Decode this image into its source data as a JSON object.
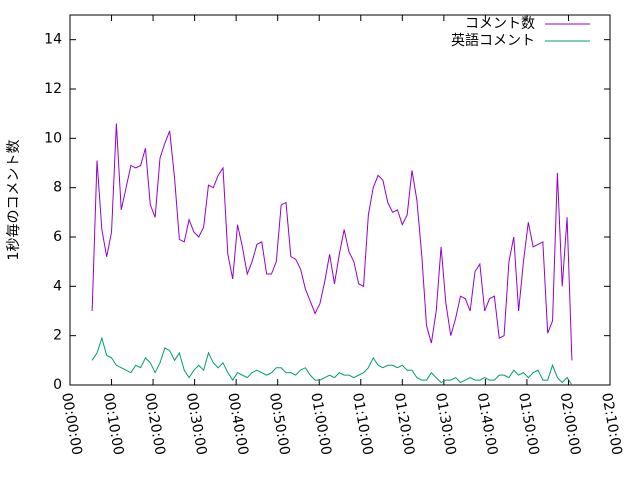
{
  "chart_data": {
    "type": "line",
    "ylabel": "1秒毎のコメント数",
    "x": [
      320,
      390,
      460,
      530,
      600,
      670,
      740,
      810,
      880,
      950,
      1020,
      1090,
      1160,
      1230,
      1300,
      1370,
      1440,
      1510,
      1580,
      1650,
      1720,
      1790,
      1860,
      1930,
      2000,
      2070,
      2140,
      2210,
      2280,
      2350,
      2420,
      2490,
      2560,
      2630,
      2700,
      2770,
      2840,
      2910,
      2980,
      3050,
      3120,
      3190,
      3260,
      3330,
      3400,
      3470,
      3540,
      3610,
      3680,
      3750,
      3820,
      3890,
      3960,
      4030,
      4100,
      4170,
      4240,
      4310,
      4380,
      4450,
      4520,
      4590,
      4660,
      4730,
      4800,
      4870,
      4940,
      5010,
      5080,
      5150,
      5220,
      5290,
      5360,
      5430,
      5500,
      5570,
      5640,
      5710,
      5780,
      5850,
      5920,
      5990,
      6060,
      6130,
      6200,
      6270,
      6340,
      6410,
      6480,
      6550,
      6620,
      6690,
      6760,
      6830,
      6900,
      6970,
      7040,
      7110,
      7180,
      7250
    ],
    "series": [
      {
        "name": "コメント数",
        "color": "#9400d3",
        "values": [
          3.0,
          9.1,
          6.3,
          5.2,
          6.2,
          10.6,
          7.1,
          8.0,
          8.9,
          8.8,
          8.9,
          9.6,
          7.3,
          6.8,
          9.2,
          9.8,
          10.3,
          8.4,
          5.9,
          5.8,
          6.7,
          6.2,
          6.0,
          6.4,
          8.1,
          8.0,
          8.5,
          8.8,
          5.3,
          4.3,
          6.5,
          5.6,
          4.5,
          5.0,
          5.7,
          5.8,
          4.5,
          4.5,
          5.0,
          7.3,
          7.4,
          5.2,
          5.1,
          4.7,
          3.9,
          3.4,
          2.9,
          3.3,
          4.2,
          5.3,
          4.1,
          5.3,
          6.3,
          5.4,
          5.0,
          4.1,
          4.0,
          6.9,
          8.0,
          8.5,
          8.3,
          7.4,
          7.0,
          7.1,
          6.5,
          6.9,
          8.7,
          7.5,
          5.3,
          2.4,
          1.7,
          3.0,
          5.6,
          3.3,
          2.0,
          2.7,
          3.6,
          3.5,
          3.0,
          4.6,
          4.9,
          3.0,
          3.5,
          3.6,
          1.9,
          2.0,
          5.0,
          6.0,
          3.0,
          5.0,
          6.6,
          5.6,
          5.7,
          5.8,
          2.1,
          2.6,
          8.6,
          4.0,
          6.8,
          1.0
        ]
      },
      {
        "name": "英語コメント",
        "color": "#009e73",
        "values": [
          1.0,
          1.3,
          1.9,
          1.2,
          1.1,
          0.8,
          0.7,
          0.6,
          0.5,
          0.8,
          0.7,
          1.1,
          0.9,
          0.5,
          0.9,
          1.5,
          1.4,
          1.0,
          1.3,
          0.6,
          0.3,
          0.6,
          0.8,
          0.6,
          1.3,
          0.9,
          0.7,
          0.9,
          0.5,
          0.2,
          0.5,
          0.4,
          0.3,
          0.5,
          0.6,
          0.5,
          0.4,
          0.5,
          0.7,
          0.7,
          0.5,
          0.5,
          0.4,
          0.6,
          0.7,
          0.4,
          0.2,
          0.2,
          0.3,
          0.4,
          0.3,
          0.5,
          0.4,
          0.4,
          0.3,
          0.4,
          0.5,
          0.7,
          1.1,
          0.8,
          0.7,
          0.8,
          0.8,
          0.7,
          0.8,
          0.6,
          0.6,
          0.3,
          0.2,
          0.2,
          0.5,
          0.3,
          0.1,
          0.2,
          0.2,
          0.3,
          0.1,
          0.2,
          0.3,
          0.2,
          0.2,
          0.3,
          0.2,
          0.2,
          0.4,
          0.4,
          0.3,
          0.6,
          0.4,
          0.5,
          0.3,
          0.5,
          0.6,
          0.2,
          0.2,
          0.8,
          0.3,
          0.1,
          0.3,
          0.0
        ]
      }
    ],
    "xlim": [
      0,
      7800
    ],
    "xticks": [
      {
        "value": 0,
        "label": "00:00:00"
      },
      {
        "value": 600,
        "label": "00:10:00"
      },
      {
        "value": 1200,
        "label": "00:20:00"
      },
      {
        "value": 1800,
        "label": "00:30:00"
      },
      {
        "value": 2400,
        "label": "00:40:00"
      },
      {
        "value": 3000,
        "label": "00:50:00"
      },
      {
        "value": 3600,
        "label": "01:00:00"
      },
      {
        "value": 4200,
        "label": "01:10:00"
      },
      {
        "value": 4800,
        "label": "01:20:00"
      },
      {
        "value": 5400,
        "label": "01:30:00"
      },
      {
        "value": 6000,
        "label": "01:40:00"
      },
      {
        "value": 6600,
        "label": "01:50:00"
      },
      {
        "value": 7200,
        "label": "02:00:00"
      },
      {
        "value": 7800,
        "label": "02:10:00"
      }
    ],
    "ylim": [
      0,
      15
    ],
    "yticks": [
      0,
      2,
      4,
      6,
      8,
      10,
      12,
      14
    ],
    "legend": "top-right"
  }
}
